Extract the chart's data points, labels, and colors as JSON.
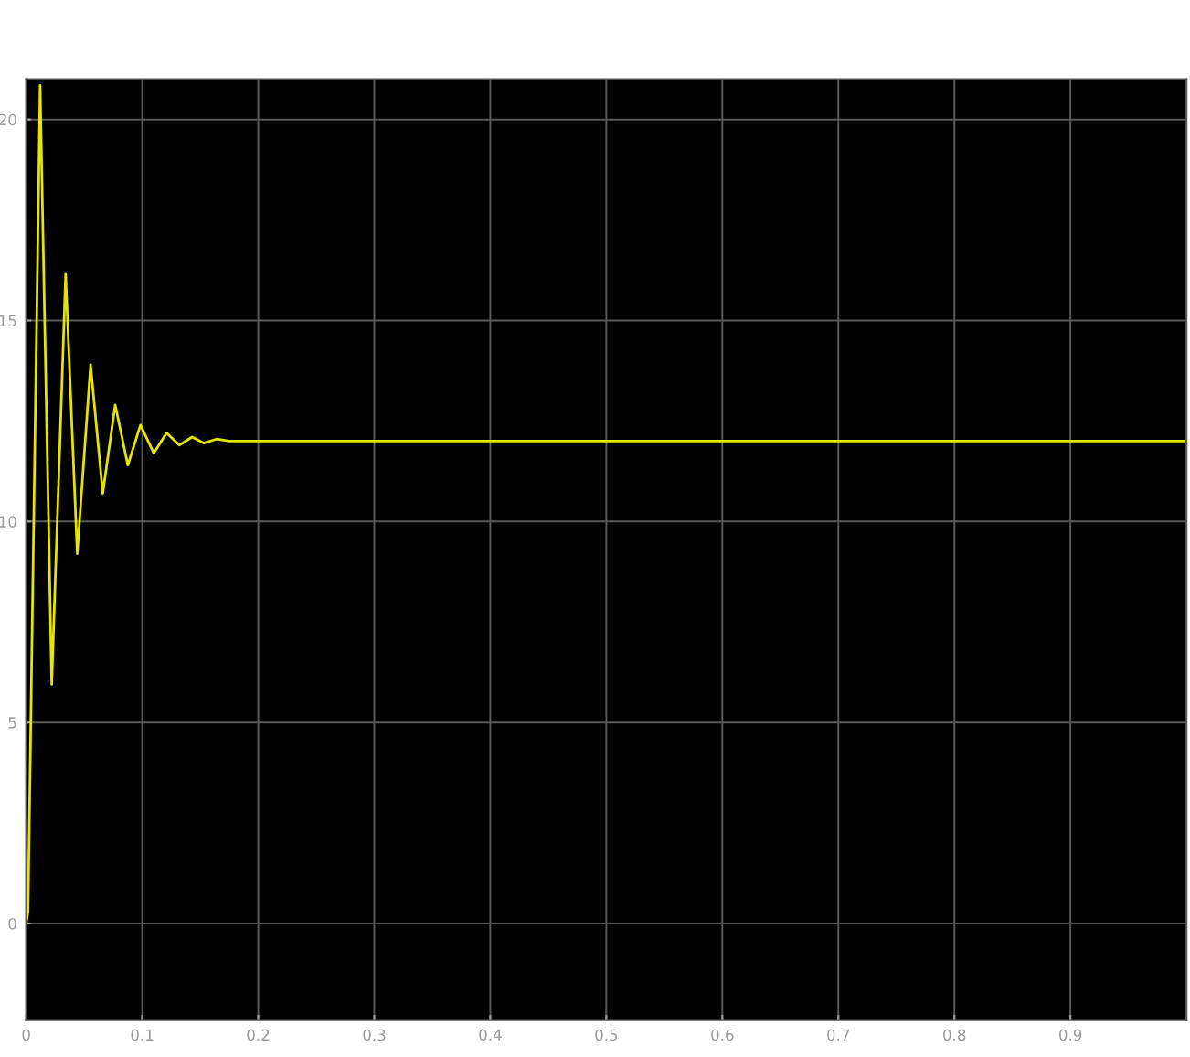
{
  "chart_data": {
    "type": "line",
    "x": [
      0,
      0.0016,
      0.012,
      0.022,
      0.034,
      0.044,
      0.0555,
      0.066,
      0.0767,
      0.0876,
      0.0985,
      0.11,
      0.121,
      0.132,
      0.143,
      0.153,
      0.164,
      0.175,
      0.2,
      1.0
    ],
    "series": [
      {
        "color": "#e6e600",
        "values": [
          0,
          0.3,
          20.85,
          5.95,
          16.15,
          9.2,
          13.9,
          10.7,
          12.9,
          11.4,
          12.4,
          11.7,
          12.2,
          11.9,
          12.1,
          11.95,
          12.05,
          12,
          12,
          12
        ]
      }
    ],
    "xlim": [
      0,
      1.0
    ],
    "xticks": [
      0,
      0.1,
      0.2,
      0.3,
      0.4,
      0.5,
      0.6,
      0.7,
      0.8,
      0.9
    ],
    "ylim": [
      -2.4,
      21
    ],
    "yticks": [
      0,
      5,
      10,
      15,
      20
    ],
    "grid": true,
    "legend": false
  }
}
